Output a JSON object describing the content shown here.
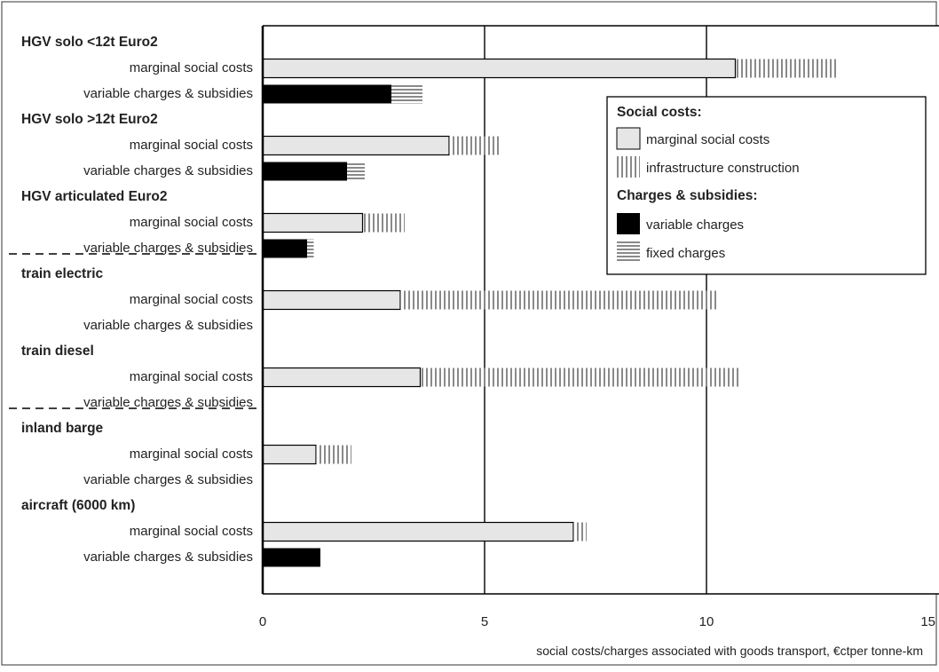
{
  "chart_data": {
    "type": "bar",
    "orientation": "horizontal",
    "stacked": true,
    "xlabel": "social costs/charges associated with goods transport, €ctper tonne-km",
    "xlim": [
      0,
      15
    ],
    "xticks": [
      0,
      5,
      10,
      15
    ],
    "grid": "vertical gridlines at 5 and 10",
    "legend_position": "right",
    "legend": {
      "social_header": "Social costs:",
      "charges_header": "Charges & subsidies:",
      "items": [
        "marginal social costs",
        "infrastructure construction",
        "variable charges",
        "fixed charges"
      ]
    },
    "colors": {
      "marginal": "#e6e6e6",
      "infrastructure": "#8a8a8a",
      "variable": "#000000",
      "fixed": "#8a8a8a"
    },
    "groups": [
      {
        "name": "HGV solo <12t Euro2",
        "rows": [
          {
            "label": "marginal social costs",
            "kind": "costs",
            "marginal": 10.65,
            "infrastructure": 2.3
          },
          {
            "label": "variable charges & subsidies",
            "kind": "charges",
            "variable": 2.9,
            "fixed": 0.7
          }
        ]
      },
      {
        "name": "HGV solo >12t Euro2",
        "rows": [
          {
            "label": "marginal social costs",
            "kind": "costs",
            "marginal": 4.2,
            "infrastructure": 1.15
          },
          {
            "label": "variable charges & subsidies",
            "kind": "charges",
            "variable": 1.9,
            "fixed": 0.4
          }
        ]
      },
      {
        "name": "HGV articulated Euro2",
        "rows": [
          {
            "label": "marginal social costs",
            "kind": "costs",
            "marginal": 2.25,
            "infrastructure": 0.95
          },
          {
            "label": "variable charges & subsidies",
            "kind": "charges",
            "variable": 1.0,
            "fixed": 0.15
          }
        ]
      },
      {
        "name": "train electric",
        "separator_above": true,
        "rows": [
          {
            "label": "marginal social costs",
            "kind": "costs",
            "marginal": 3.1,
            "infrastructure": 7.15
          },
          {
            "label": "variable charges & subsidies",
            "kind": "charges",
            "variable": 0,
            "fixed": 0
          }
        ]
      },
      {
        "name": "train diesel",
        "rows": [
          {
            "label": "marginal social costs",
            "kind": "costs",
            "marginal": 3.55,
            "infrastructure": 7.2
          },
          {
            "label": "variable charges & subsidies",
            "kind": "charges",
            "variable": 0,
            "fixed": 0
          }
        ]
      },
      {
        "name": "inland barge",
        "separator_above": true,
        "rows": [
          {
            "label": "marginal social costs",
            "kind": "costs",
            "marginal": 1.2,
            "infrastructure": 0.8
          },
          {
            "label": "variable charges & subsidies",
            "kind": "charges",
            "variable": 0,
            "fixed": 0
          }
        ]
      },
      {
        "name": "aircraft (6000 km)",
        "rows": [
          {
            "label": "marginal social costs",
            "kind": "costs",
            "marginal": 7.0,
            "infrastructure": 0.3
          },
          {
            "label": "variable charges & subsidies",
            "kind": "charges",
            "variable": 1.3,
            "fixed": 0
          }
        ]
      }
    ]
  }
}
